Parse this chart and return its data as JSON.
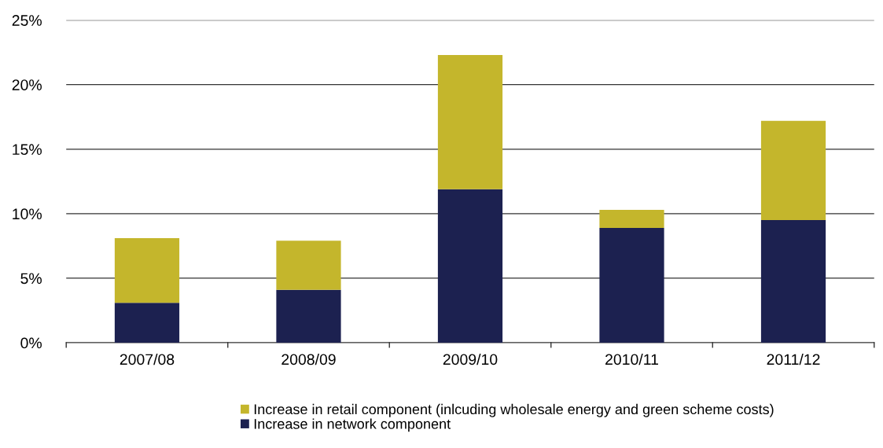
{
  "chart_data": {
    "type": "bar",
    "stacked": true,
    "categories": [
      "2007/08",
      "2008/09",
      "2009/10",
      "2010/11",
      "2011/12"
    ],
    "series": [
      {
        "name": "Increase in network component",
        "color": "#1c2150",
        "values": [
          3.1,
          4.1,
          11.9,
          8.9,
          9.5
        ]
      },
      {
        "name": "Increase in retail component (inlcuding wholesale energy and green scheme costs)",
        "color": "#c4b62c",
        "values": [
          5.0,
          3.8,
          10.4,
          1.4,
          7.7
        ]
      }
    ],
    "ylim": [
      0,
      25
    ],
    "yticks": [
      {
        "value": 0,
        "label": "0%"
      },
      {
        "value": 5,
        "label": "5%"
      },
      {
        "value": 10,
        "label": "10%"
      },
      {
        "value": 15,
        "label": "15%"
      },
      {
        "value": 20,
        "label": "20%"
      },
      {
        "value": 25,
        "label": "25%"
      }
    ],
    "grid": "y",
    "legend": "bottom"
  }
}
